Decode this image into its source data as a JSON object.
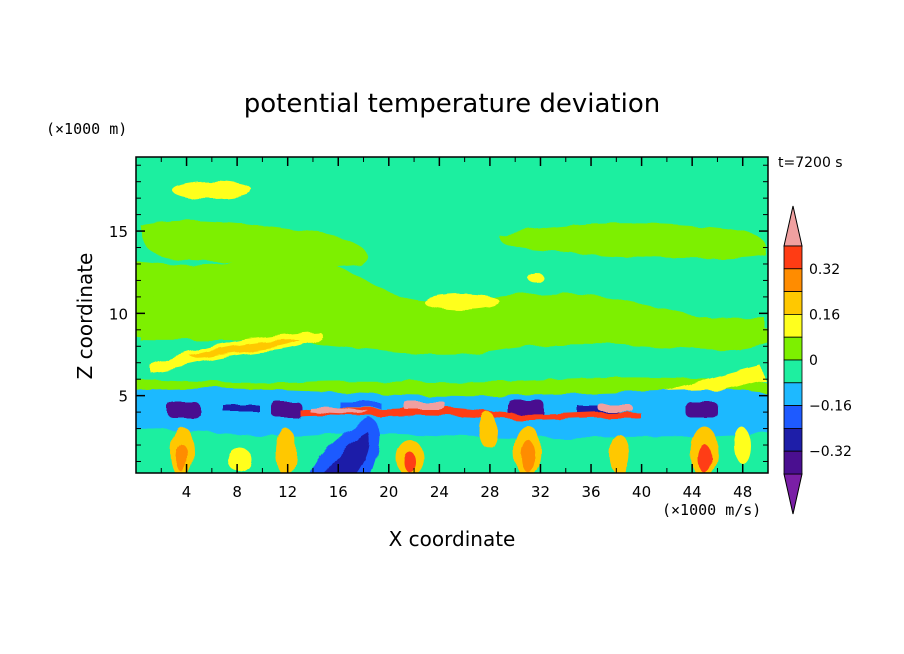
{
  "chart_data": {
    "type": "heatmap",
    "title": "potential temperature deviation",
    "xlabel": "X coordinate",
    "ylabel": "Z coordinate",
    "x_unit_label": "(×1000 m/s)",
    "y_unit_label": "(×1000 m)",
    "time_label": "t=7200 s",
    "xlim": [
      0,
      50
    ],
    "ylim": [
      0.3,
      19.5
    ],
    "x_ticks": [
      4,
      8,
      12,
      16,
      20,
      24,
      28,
      32,
      36,
      40,
      44,
      48
    ],
    "y_ticks": [
      5,
      10,
      15
    ],
    "x_tick_labels": [
      "4",
      "8",
      "12",
      "16",
      "20",
      "24",
      "28",
      "32",
      "36",
      "40",
      "44",
      "48"
    ],
    "y_tick_labels": [
      "5",
      "10",
      "15"
    ],
    "colorbar": {
      "levels": [
        -0.48,
        -0.4,
        -0.32,
        -0.24,
        -0.16,
        -0.08,
        0,
        0.08,
        0.16,
        0.24,
        0.32,
        0.4
      ],
      "tick_labels": [
        "0.32",
        "0.16",
        "0",
        "−0.16",
        "−0.32"
      ],
      "tick_values": [
        0.32,
        0.16,
        0,
        -0.16,
        -0.32
      ],
      "colors": [
        "#7a1fa6",
        "#4a0f90",
        "#1e1ea8",
        "#1e5aff",
        "#1eb9ff",
        "#1eefa0",
        "#7df000",
        "#ffff1e",
        "#ffc800",
        "#ff8c00",
        "#ff3c14",
        "#f0a0a0"
      ]
    },
    "features": [
      {
        "name": "warm pockets",
        "x": [
          5,
          11,
          22,
          30,
          38,
          45
        ],
        "z": [
          1.5,
          1.0,
          1.0,
          1.5,
          1.0,
          1.5
        ],
        "value": 0.3
      },
      {
        "name": "cold cores",
        "x": [
          4,
          12,
          31,
          44
        ],
        "z": [
          4.1,
          4.1,
          4.1,
          4.1
        ],
        "value": -0.48
      },
      {
        "name": "deep cold",
        "x": [
          17
        ],
        "z": [
          1.2
        ],
        "value": -0.3
      }
    ]
  }
}
